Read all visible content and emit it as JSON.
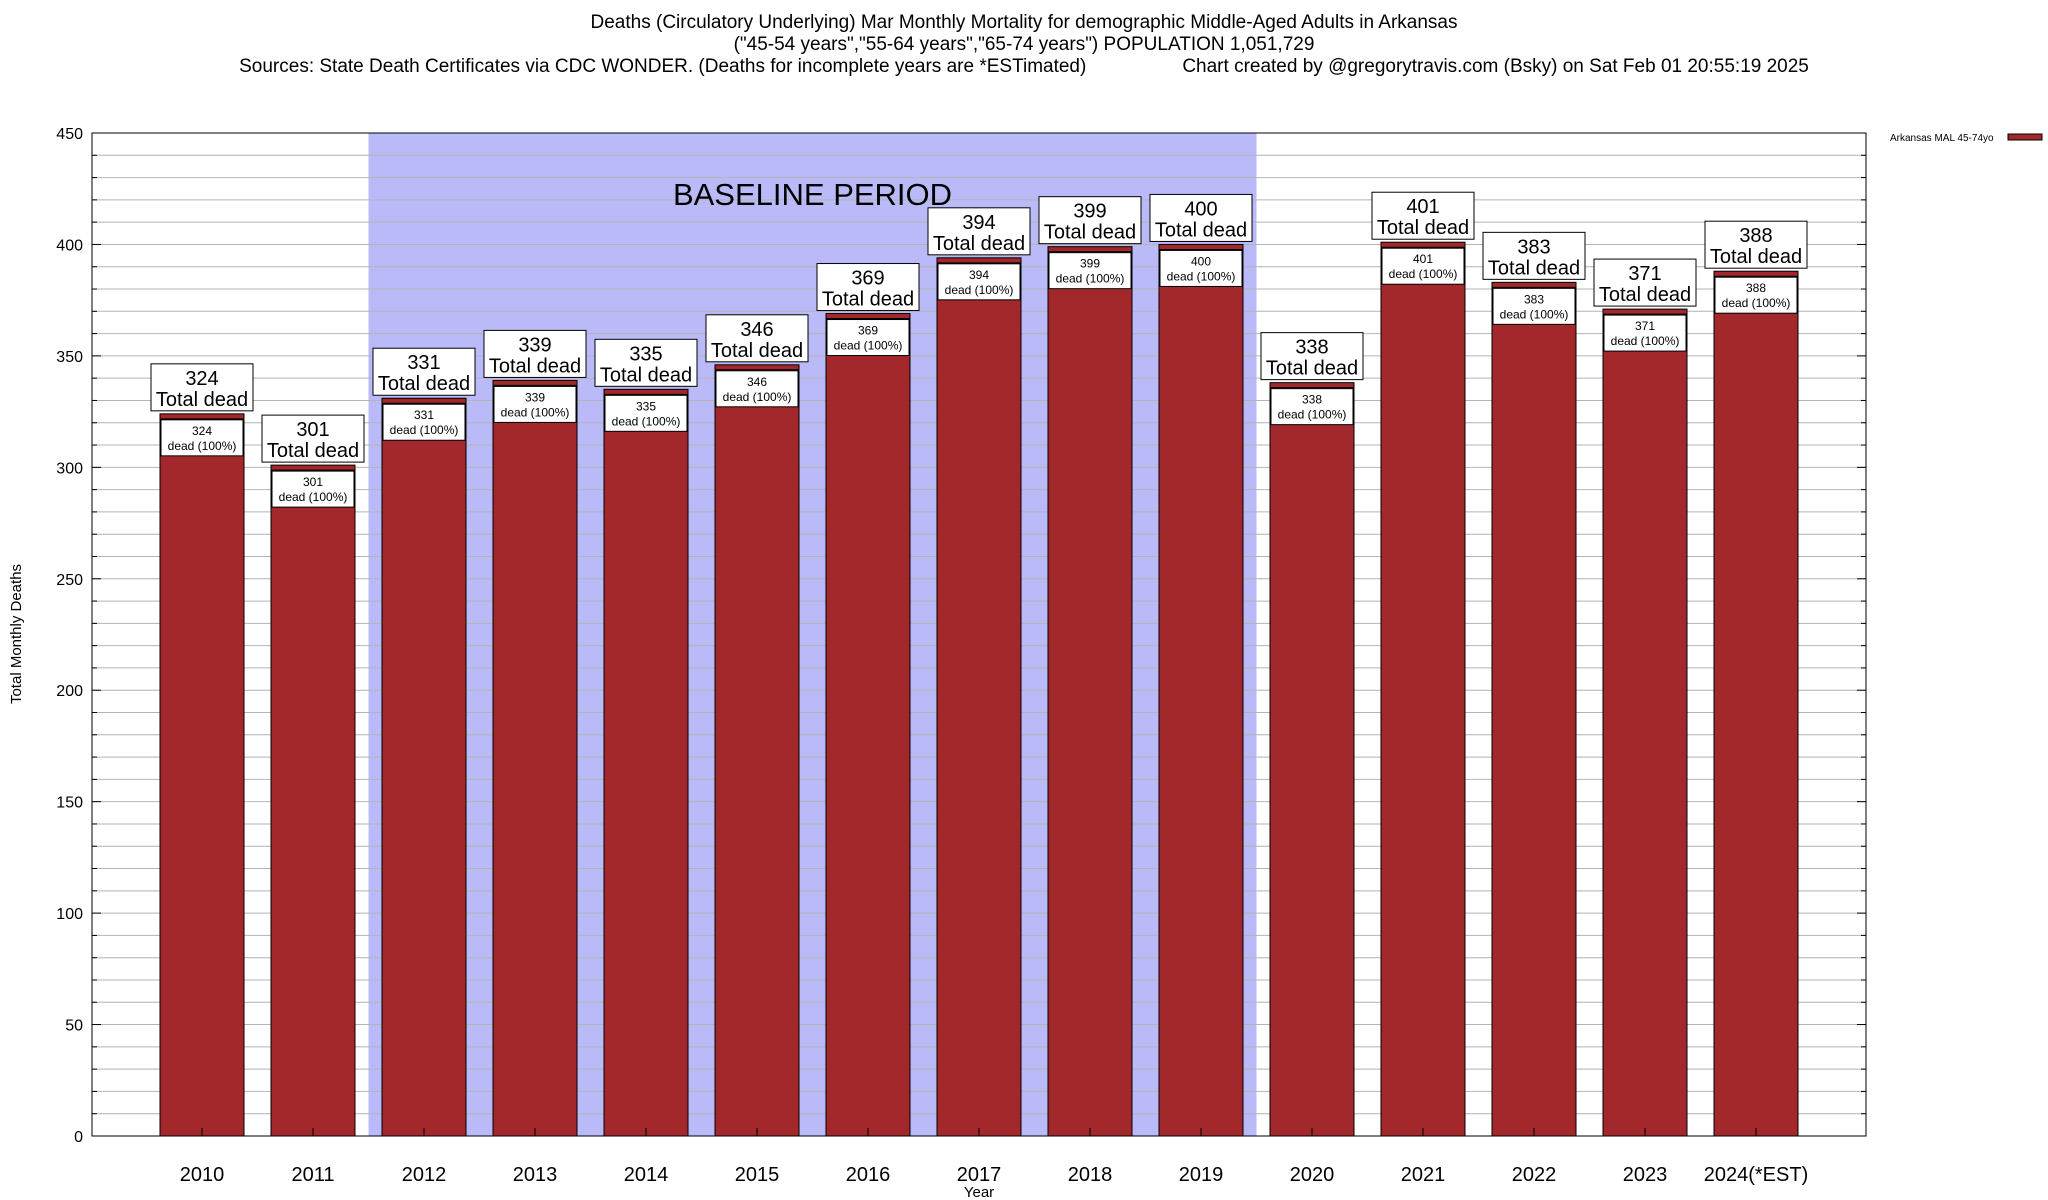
{
  "title": {
    "line1": "Deaths (Circulatory Underlying) Mar Monthly Mortality for demographic Middle-Aged Adults in Arkansas",
    "line2": "(\"45-54 years\",\"55-64 years\",\"65-74 years\") POPULATION 1,051,729",
    "line3_left": "Sources: State Death Certificates via CDC WONDER. (Deaths for incomplete years are *ESTimated)",
    "line3_right": "Chart created by @gregorytravis.com (Bsky) on Sat Feb 01 20:55:19 2025"
  },
  "colors": {
    "bar": "#a3282b",
    "baseline_band": "#babaf8",
    "grid": "#b4b4b4"
  },
  "chart_data": {
    "type": "bar",
    "xlabel": "Year",
    "ylabel": "Total Monthly Deaths",
    "ylim": [
      0,
      450
    ],
    "y_major_ticks": [
      0,
      50,
      100,
      150,
      200,
      250,
      300,
      350,
      400,
      450
    ],
    "y_minor_step": 10,
    "grid": true,
    "legend": {
      "placement": "top-right",
      "entries": [
        "Arkansas MAL 45-74yo"
      ]
    },
    "baseline": {
      "label": "BASELINE PERIOD",
      "from": "2012",
      "to": "2019"
    },
    "total_label_suffix": "Total dead",
    "inner_label_suffix": "dead (100%)",
    "categories": [
      "2010",
      "2011",
      "2012",
      "2013",
      "2014",
      "2015",
      "2016",
      "2017",
      "2018",
      "2019",
      "2020",
      "2021",
      "2022",
      "2023",
      "2024(*EST)"
    ],
    "series": [
      {
        "name": "Arkansas MAL 45-74yo",
        "values": [
          324,
          301,
          331,
          339,
          335,
          346,
          369,
          394,
          399,
          400,
          338,
          401,
          383,
          371,
          388
        ]
      }
    ]
  }
}
